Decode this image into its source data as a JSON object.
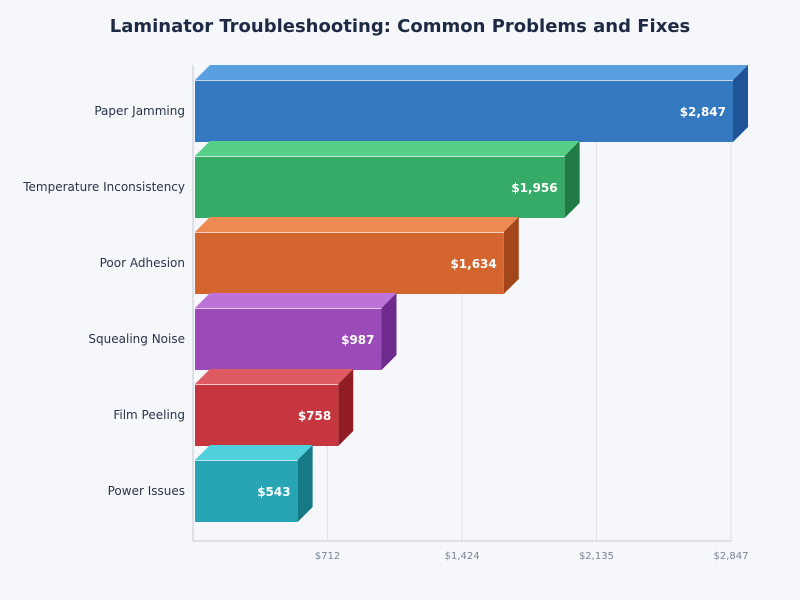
{
  "chart_data": {
    "type": "bar",
    "orientation": "horizontal",
    "style": "3d",
    "title": "Laminator Troubleshooting: Common Problems and Fixes",
    "categories": [
      "Paper Jamming",
      "Temperature Inconsistency",
      "Poor Adhesion",
      "Squealing Noise",
      "Film Peeling",
      "Power Issues"
    ],
    "values": [
      2847,
      1956,
      1634,
      987,
      758,
      543
    ],
    "data_labels": [
      "$2,847",
      "$1,956",
      "$1,634",
      "$987",
      "$758",
      "$543"
    ],
    "colors": [
      {
        "front": "#3478c0",
        "top": "#5a9fe0",
        "side": "#1f5596"
      },
      {
        "front": "#36ab68",
        "top": "#58cf88",
        "side": "#1f7c45"
      },
      {
        "front": "#d4652e",
        "top": "#ec8a52",
        "side": "#a3461a"
      },
      {
        "front": "#9a4bb8",
        "top": "#bd72d8",
        "side": "#6e2a8c"
      },
      {
        "front": "#c6363e",
        "top": "#e05a62",
        "side": "#921c24"
      },
      {
        "front": "#27a5b5",
        "top": "#4fd0dc",
        "side": "#167a86"
      }
    ],
    "xlim": [
      0,
      2847
    ],
    "x_ticks": [
      712,
      1424,
      2135,
      2847
    ],
    "x_tick_labels": [
      "$712",
      "$1,424",
      "$2,135",
      "$2,847"
    ],
    "grid": "vertical"
  }
}
